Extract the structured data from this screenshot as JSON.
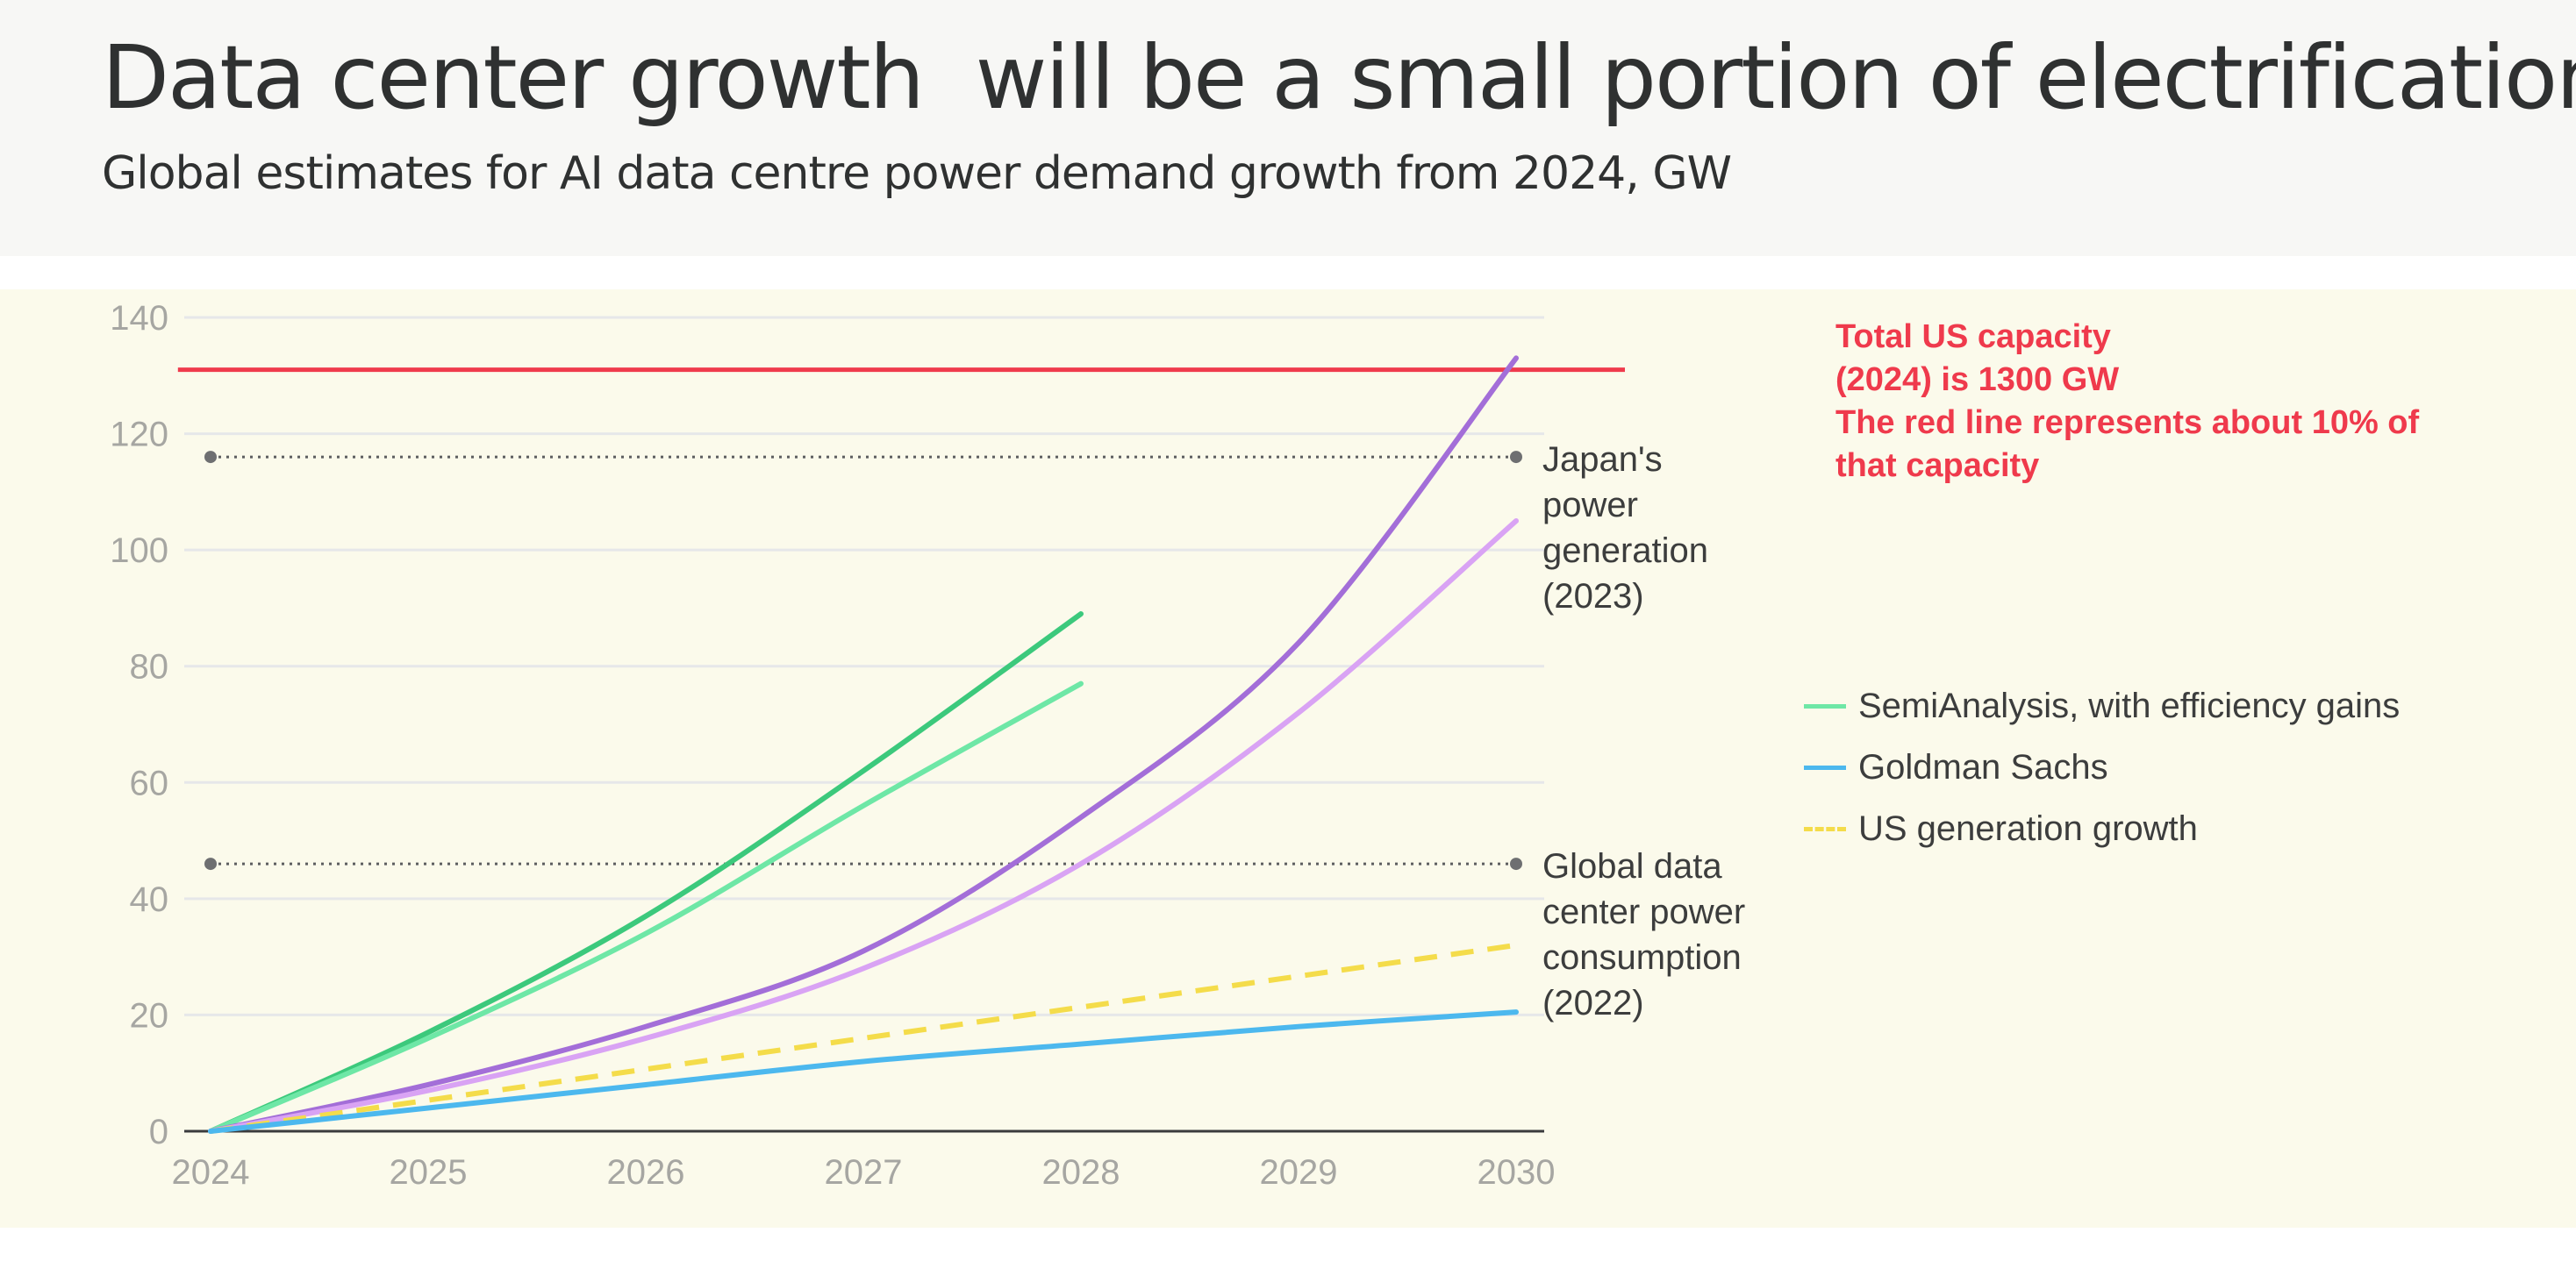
{
  "header": {
    "title": "Data center growth  will be a small portion of electrification",
    "subtitle": "Global estimates for AI data centre power demand growth from 2024, GW"
  },
  "annotation": {
    "lines": [
      "Total US capacity",
      "(2024) is 1300 GW",
      "The red line represents about 10% of",
      "that capacity"
    ],
    "color": "#ef3a4c"
  },
  "legend": [
    {
      "label": "SemiAnalysis, with efficiency gains",
      "color": "#6ee7a6",
      "dash": false
    },
    {
      "label": "Goldman Sachs",
      "color": "#4cb8ee",
      "dash": false
    },
    {
      "label": "US generation growth",
      "color": "#f4dc4a",
      "dash": true
    }
  ],
  "chart_data": {
    "type": "line",
    "x_ticks": [
      "2024",
      "2025",
      "2026",
      "2027",
      "2028",
      "2029",
      "2030"
    ],
    "y_ticks": [
      "0",
      "20",
      "40",
      "60",
      "80",
      "100",
      "120",
      "140"
    ],
    "xlim": [
      2024,
      2030
    ],
    "ylim": [
      0,
      140
    ],
    "grid": true,
    "legend_position": "right",
    "reference_lines": [
      {
        "label_lines": [
          "Japan's",
          "power",
          "generation",
          "(2023)"
        ],
        "y": 116,
        "x_start": 2024,
        "x_end": 2030,
        "style": "dotted"
      },
      {
        "label_lines": [
          "Global data",
          "center power",
          "consumption",
          "(2022)"
        ],
        "y": 46,
        "x_start": 2024,
        "x_end": 2030,
        "style": "dotted"
      },
      {
        "y": 131,
        "x_start": 2023.85,
        "x_end": 2030.5,
        "color": "#ef3a4c",
        "style": "solid"
      }
    ],
    "series": [
      {
        "color": "#3cc97c",
        "dash": false,
        "x": [
          2024,
          2025,
          2026,
          2027,
          2028
        ],
        "y": [
          0,
          17,
          37,
          62,
          89
        ]
      },
      {
        "color": "#6ee7a6",
        "dash": false,
        "x": [
          2024,
          2025,
          2026,
          2027,
          2028
        ],
        "y": [
          0,
          16,
          34,
          56,
          77
        ]
      },
      {
        "color": "#a36ed8",
        "dash": false,
        "x": [
          2024,
          2025,
          2026,
          2027,
          2028,
          2029,
          2030
        ],
        "y": [
          0,
          8,
          18,
          31,
          54,
          84,
          133
        ]
      },
      {
        "color": "#d9a3f4",
        "dash": false,
        "x": [
          2024,
          2025,
          2026,
          2027,
          2028,
          2029,
          2030
        ],
        "y": [
          0,
          7,
          16,
          28,
          46,
          72,
          105
        ]
      },
      {
        "color": "#f4dc4a",
        "dash": true,
        "x": [
          2024,
          2030
        ],
        "y": [
          0,
          32
        ]
      },
      {
        "color": "#4cb8ee",
        "dash": false,
        "x": [
          2024,
          2025,
          2026,
          2027,
          2028,
          2029,
          2030
        ],
        "y": [
          0,
          4,
          8,
          12,
          15,
          18,
          20.5
        ]
      }
    ]
  }
}
